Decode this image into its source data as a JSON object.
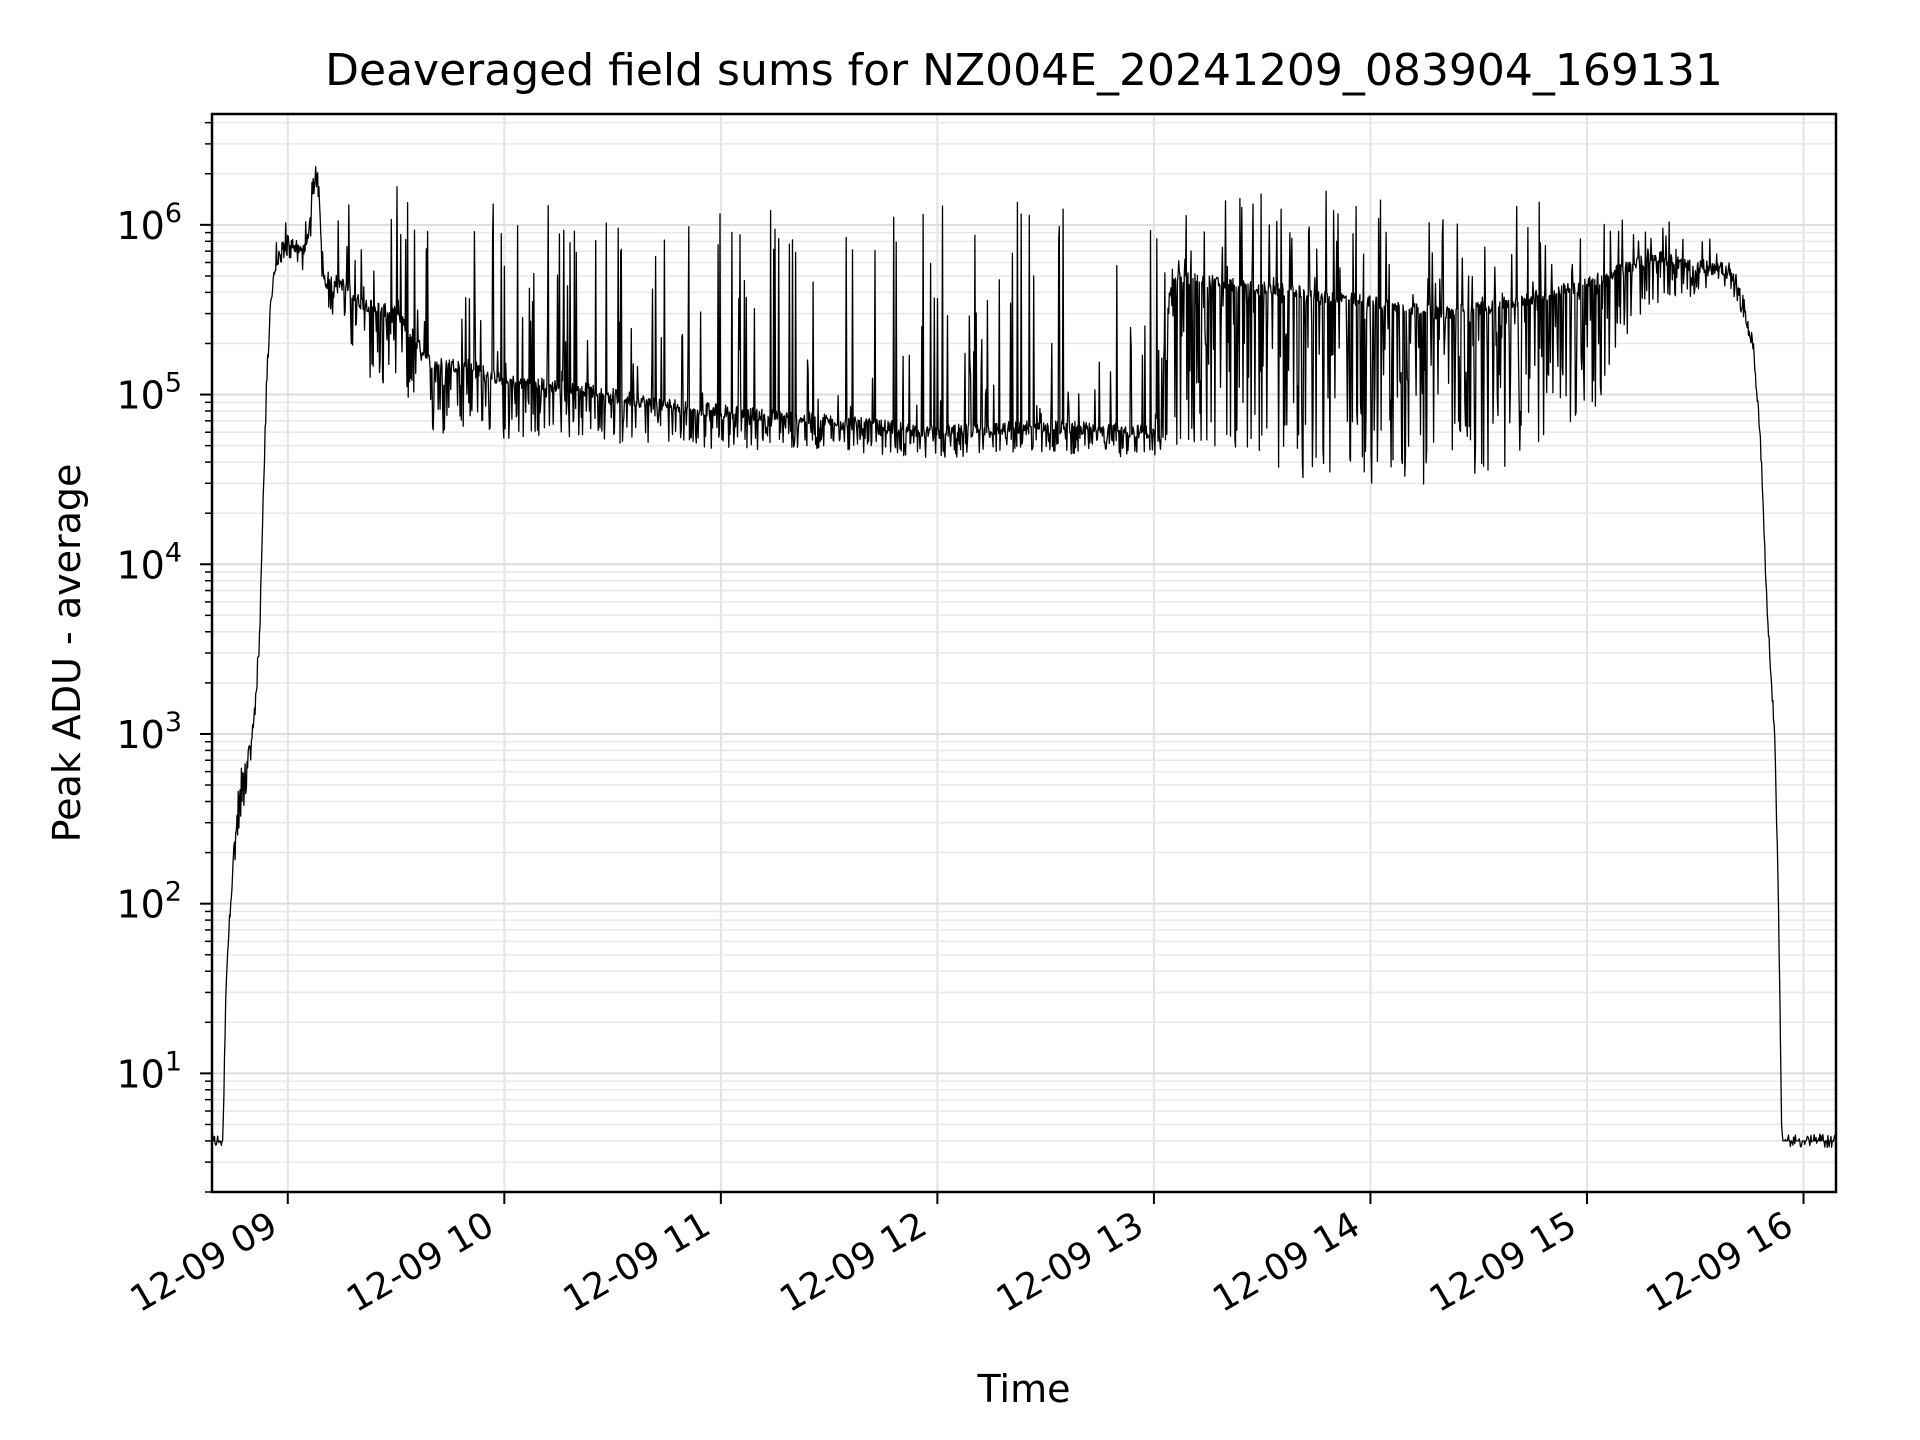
{
  "chart_data": {
    "type": "line",
    "title": "Deaveraged field sums for NZ004E_20241209_083904_169131",
    "xlabel": "Time",
    "ylabel": "Peak ADU - average",
    "yscale": "log",
    "xlim": [
      "2024-12-09 08:39",
      "2024-12-09 16:09"
    ],
    "ylim": [
      2,
      4500000
    ],
    "grid": true,
    "x_tick_labels": [
      "12-09 09",
      "12-09 10",
      "12-09 11",
      "12-09 12",
      "12-09 13",
      "12-09 14",
      "12-09 15",
      "12-09 16"
    ],
    "y_tick_labels": [
      {
        "base": "10",
        "exp": "1"
      },
      {
        "base": "10",
        "exp": "2"
      },
      {
        "base": "10",
        "exp": "3"
      },
      {
        "base": "10",
        "exp": "4"
      },
      {
        "base": "10",
        "exp": "5"
      },
      {
        "base": "10",
        "exp": "6"
      }
    ],
    "series": [
      {
        "color": "#000000",
        "x": [
          "2024-12-09 08:39",
          "2024-12-09 08:42",
          "2024-12-09 08:43",
          "2024-12-09 08:45",
          "2024-12-09 08:47",
          "2024-12-09 08:50",
          "2024-12-09 08:52",
          "2024-12-09 08:54",
          "2024-12-09 08:55",
          "2024-12-09 08:56",
          "2024-12-09 08:58",
          "2024-12-09 09:00",
          "2024-12-09 09:05",
          "2024-12-09 09:08",
          "2024-12-09 09:10",
          "2024-12-09 09:15",
          "2024-12-09 09:20",
          "2024-12-09 09:30",
          "2024-12-09 09:40",
          "2024-12-09 09:50",
          "2024-12-09 10:00",
          "2024-12-09 10:20",
          "2024-12-09 10:40",
          "2024-12-09 11:00",
          "2024-12-09 11:30",
          "2024-12-09 12:00",
          "2024-12-09 12:30",
          "2024-12-09 13:00",
          "2024-12-09 13:05",
          "2024-12-09 13:20",
          "2024-12-09 13:40",
          "2024-12-09 14:00",
          "2024-12-09 14:20",
          "2024-12-09 14:40",
          "2024-12-09 15:00",
          "2024-12-09 15:10",
          "2024-12-09 15:20",
          "2024-12-09 15:25",
          "2024-12-09 15:30",
          "2024-12-09 15:35",
          "2024-12-09 15:40",
          "2024-12-09 15:43",
          "2024-12-09 15:46",
          "2024-12-09 15:48",
          "2024-12-09 15:50",
          "2024-12-09 15:52",
          "2024-12-09 15:53",
          "2024-12-09 15:54",
          "2024-12-09 15:55",
          "2024-12-09 16:09"
        ],
        "y": [
          4,
          4,
          40,
          200,
          500,
          900,
          3000,
          100000,
          300000,
          500000,
          700000,
          800000,
          700000,
          2200000,
          500000,
          450000,
          350000,
          300000,
          150000,
          150000,
          120000,
          110000,
          90000,
          80000,
          70000,
          60000,
          65000,
          60000,
          500000,
          450000,
          400000,
          350000,
          300000,
          350000,
          450000,
          550000,
          650000,
          600000,
          550000,
          600000,
          500000,
          350000,
          200000,
          60000,
          5000,
          1000,
          120,
          4,
          4,
          4
        ],
        "noise_upper": [
          1,
          1,
          1,
          1.5,
          1.5,
          1.5,
          1.2,
          1.2,
          1.3,
          1.4,
          1.4,
          1.5,
          1.8,
          1.2,
          2.5,
          3,
          4,
          6,
          8,
          10,
          12,
          14,
          15,
          18,
          20,
          22,
          24,
          20,
          3,
          3.5,
          4,
          4.5,
          4.5,
          4,
          3,
          2.5,
          2,
          1.6,
          1.5,
          1.4,
          1.3,
          1.2,
          1.1,
          1.1,
          1.1,
          1.1,
          1,
          1,
          1,
          1
        ],
        "noise_lower": [
          1,
          1,
          1,
          0.6,
          0.6,
          0.7,
          0.8,
          0.8,
          0.85,
          0.85,
          0.85,
          0.8,
          0.75,
          0.7,
          0.6,
          0.5,
          0.4,
          0.3,
          0.35,
          0.4,
          0.45,
          0.5,
          0.55,
          0.6,
          0.65,
          0.7,
          0.7,
          0.7,
          0.1,
          0.1,
          0.08,
          0.08,
          0.1,
          0.1,
          0.15,
          0.3,
          0.5,
          0.6,
          0.7,
          0.75,
          0.8,
          0.85,
          0.85,
          0.85,
          0.85,
          0.9,
          1,
          1,
          1,
          1
        ]
      }
    ]
  }
}
